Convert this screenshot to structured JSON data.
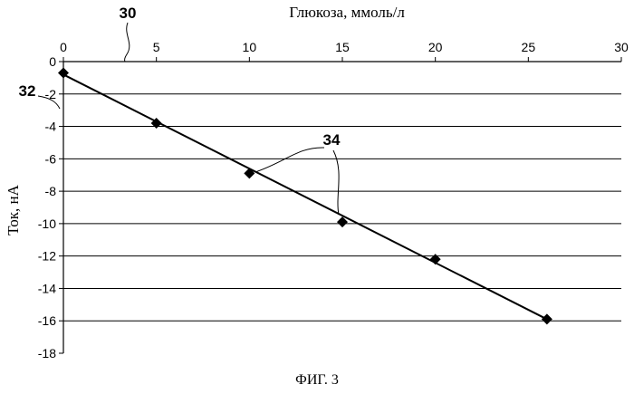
{
  "chart_data": {
    "type": "scatter",
    "title": "",
    "xlabel": "Глюкоза, ммоль/л",
    "ylabel": "Ток, нА",
    "x_axis_position": "top",
    "xlim": [
      0,
      30
    ],
    "ylim": [
      -18,
      0
    ],
    "x_ticks": [
      0,
      5,
      10,
      15,
      20,
      25,
      30
    ],
    "y_ticks": [
      0,
      -2,
      -4,
      -6,
      -8,
      -10,
      -12,
      -14,
      -16,
      -18
    ],
    "grid": "horizontal",
    "legend": "none",
    "series": [
      {
        "x": [
          0,
          5,
          10,
          15,
          20,
          26
        ],
        "y": [
          -0.7,
          -3.8,
          -6.9,
          -9.9,
          -12.2,
          -15.9
        ],
        "marker": "diamond",
        "color": "#000000"
      }
    ],
    "trendline": {
      "type": "linear",
      "x": [
        0,
        26
      ],
      "y": [
        -0.8,
        -15.9
      ]
    },
    "caption": "ФИГ. 3",
    "reference_labels": {
      "axis": "30",
      "start": "32",
      "points": "34"
    }
  }
}
